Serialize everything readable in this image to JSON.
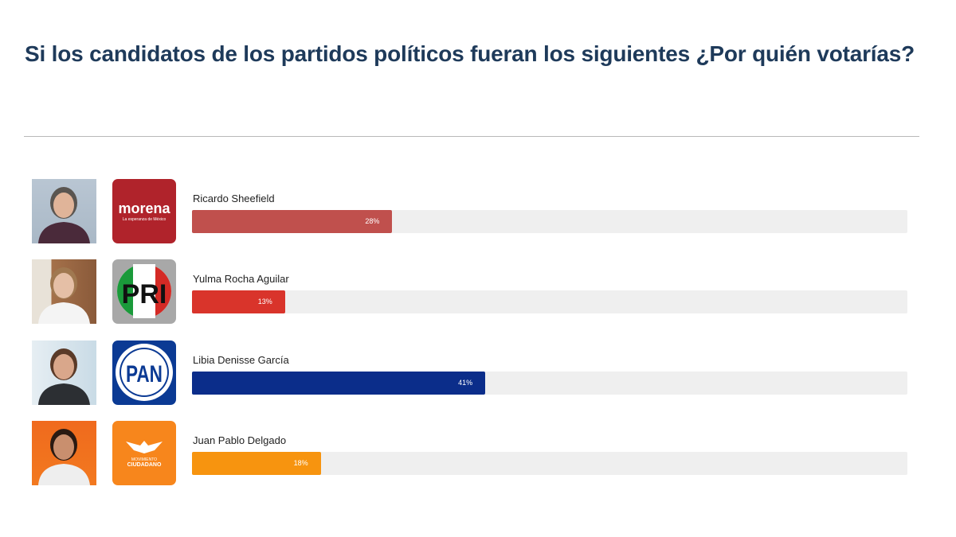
{
  "title": "Si los candidatos de los partidos políticos fueran los siguientes ¿Por quién votarías?",
  "chart_data": {
    "type": "bar",
    "orientation": "horizontal",
    "title": "Si los candidatos de los partidos políticos fueran los siguientes ¿Por quién votarías?",
    "xlim": [
      0,
      100
    ],
    "categories": [
      "Ricardo Sheefield",
      "Yulma Rocha Aguilar",
      "Libia Denisse García",
      "Juan Pablo Delgado"
    ],
    "values": [
      28,
      13,
      41,
      18
    ],
    "labels": [
      "28%",
      "13%",
      "41%",
      "18%"
    ],
    "parties": [
      "morena",
      "PRI",
      "PAN",
      "Movimiento Ciudadano"
    ],
    "colors": [
      "#c0504d",
      "#d9342b",
      "#0b2d8a",
      "#f7940f"
    ]
  },
  "logos": {
    "morena": {
      "text": "morena",
      "sub": "La esperanza de México"
    },
    "pri": {
      "text": "PRI"
    },
    "pan": {
      "text": "PAN"
    },
    "mc": {
      "line1": "MOVIMIENTO",
      "line2": "CIUDADANO"
    }
  }
}
